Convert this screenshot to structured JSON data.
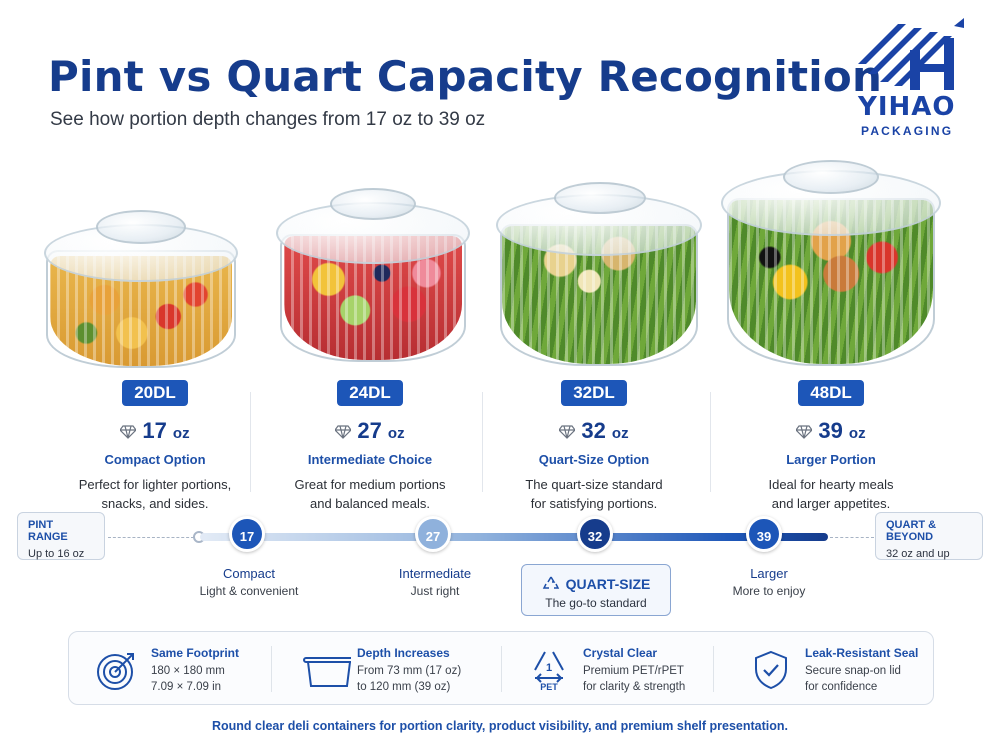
{
  "header": {
    "title": "Pint vs Quart Capacity Recognition",
    "subtitle": "See how portion depth changes from 17 oz to 39 oz"
  },
  "logo": {
    "name": "YIHAO",
    "sub": "PACKAGING",
    "icon": "yihao-logo-icon",
    "color": "#1a43a6"
  },
  "products": [
    {
      "code": "20DL",
      "oz": "17",
      "unit": "oz",
      "name": "Compact Option",
      "desc1": "Perfect for lighter portions,",
      "desc2": "snacks, and sides.",
      "food": "pasta-salad"
    },
    {
      "code": "24DL",
      "oz": "27",
      "unit": "oz",
      "name": "Intermediate Choice",
      "desc1": "Great for medium portions",
      "desc2": "and balanced meals.",
      "food": "fruit-salad"
    },
    {
      "code": "32DL",
      "oz": "32",
      "unit": "oz",
      "name": "Quart-Size Option",
      "desc1": "The quart-size standard",
      "desc2": "for satisfying portions.",
      "food": "caesar-salad"
    },
    {
      "code": "48DL",
      "oz": "39",
      "unit": "oz",
      "name": "Larger Portion",
      "desc1": "Ideal for hearty meals",
      "desc2": "and larger appetites.",
      "food": "taco-salad"
    }
  ],
  "range": {
    "pint": {
      "title": "PINT RANGE",
      "sub": "Up to 16 oz"
    },
    "quart": {
      "title": "QUART & BEYOND",
      "sub": "32 oz and up"
    },
    "nodes": [
      {
        "value": "17 oz",
        "label": "Compact",
        "sub": "Light & convenient",
        "color": "#1d56b8"
      },
      {
        "value": "27 oz",
        "label": "Intermediate",
        "sub": "Just right",
        "color": "#8fb1dc"
      },
      {
        "value": "32 oz",
        "label": "QUART-SIZE",
        "sub": "The go-to standard",
        "color": "#163c8c"
      },
      {
        "value": "39 oz",
        "label": "Larger",
        "sub": "More to enjoy",
        "color": "#1d56b8"
      }
    ]
  },
  "features": [
    {
      "title": "Same Footprint",
      "line1": "180 × 180 mm",
      "line2": "7.09 × 7.09 in",
      "icon": "target-icon"
    },
    {
      "title": "Depth Increases",
      "line1": "From 73 mm (17 oz)",
      "line2": "to 120 mm (39 oz)",
      "icon": "container-outline-icon"
    },
    {
      "title": "Crystal Clear",
      "line1": "Premium PET/rPET",
      "line2": "for clarity & strength",
      "icon": "pet-recycle-icon",
      "badge": "PET",
      "num": "1"
    },
    {
      "title": "Leak-Resistant Seal",
      "line1": "Secure snap-on lid",
      "line2": "for confidence",
      "icon": "shield-check-icon"
    }
  ],
  "footer": "Round clear deli containers for portion clarity, product visibility, and premium shelf presentation."
}
